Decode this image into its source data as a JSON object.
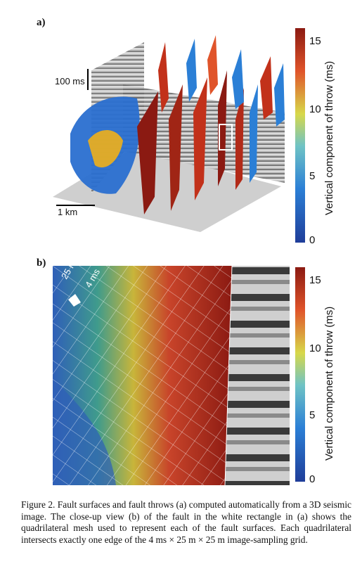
{
  "panel_a": {
    "label": "a)",
    "scale_vertical": "100 ms",
    "scale_horizontal": "1 km",
    "colorbar": {
      "title": "Vertical component of throw (ms)",
      "ticks": [
        "15",
        "10",
        "5",
        "0"
      ],
      "range": [
        0,
        16
      ]
    }
  },
  "panel_b": {
    "label": "b)",
    "scale_a": "25 m",
    "scale_b": "4 ms",
    "colorbar": {
      "title": "Vertical component of throw (ms)",
      "ticks": [
        "15",
        "10",
        "5",
        "0"
      ],
      "range": [
        0,
        16
      ]
    }
  },
  "caption": "Figure 2. Fault surfaces and fault throws (a) computed automatically from a 3D seismic image. The close-up view (b) of the fault in the white rectangle in (a) shows the quadrilateral mesh used to represent each of the fault surfaces. Each quadrilateral intersects exactly one edge of the 4 ms × 25 m × 25 m image-sampling grid."
}
